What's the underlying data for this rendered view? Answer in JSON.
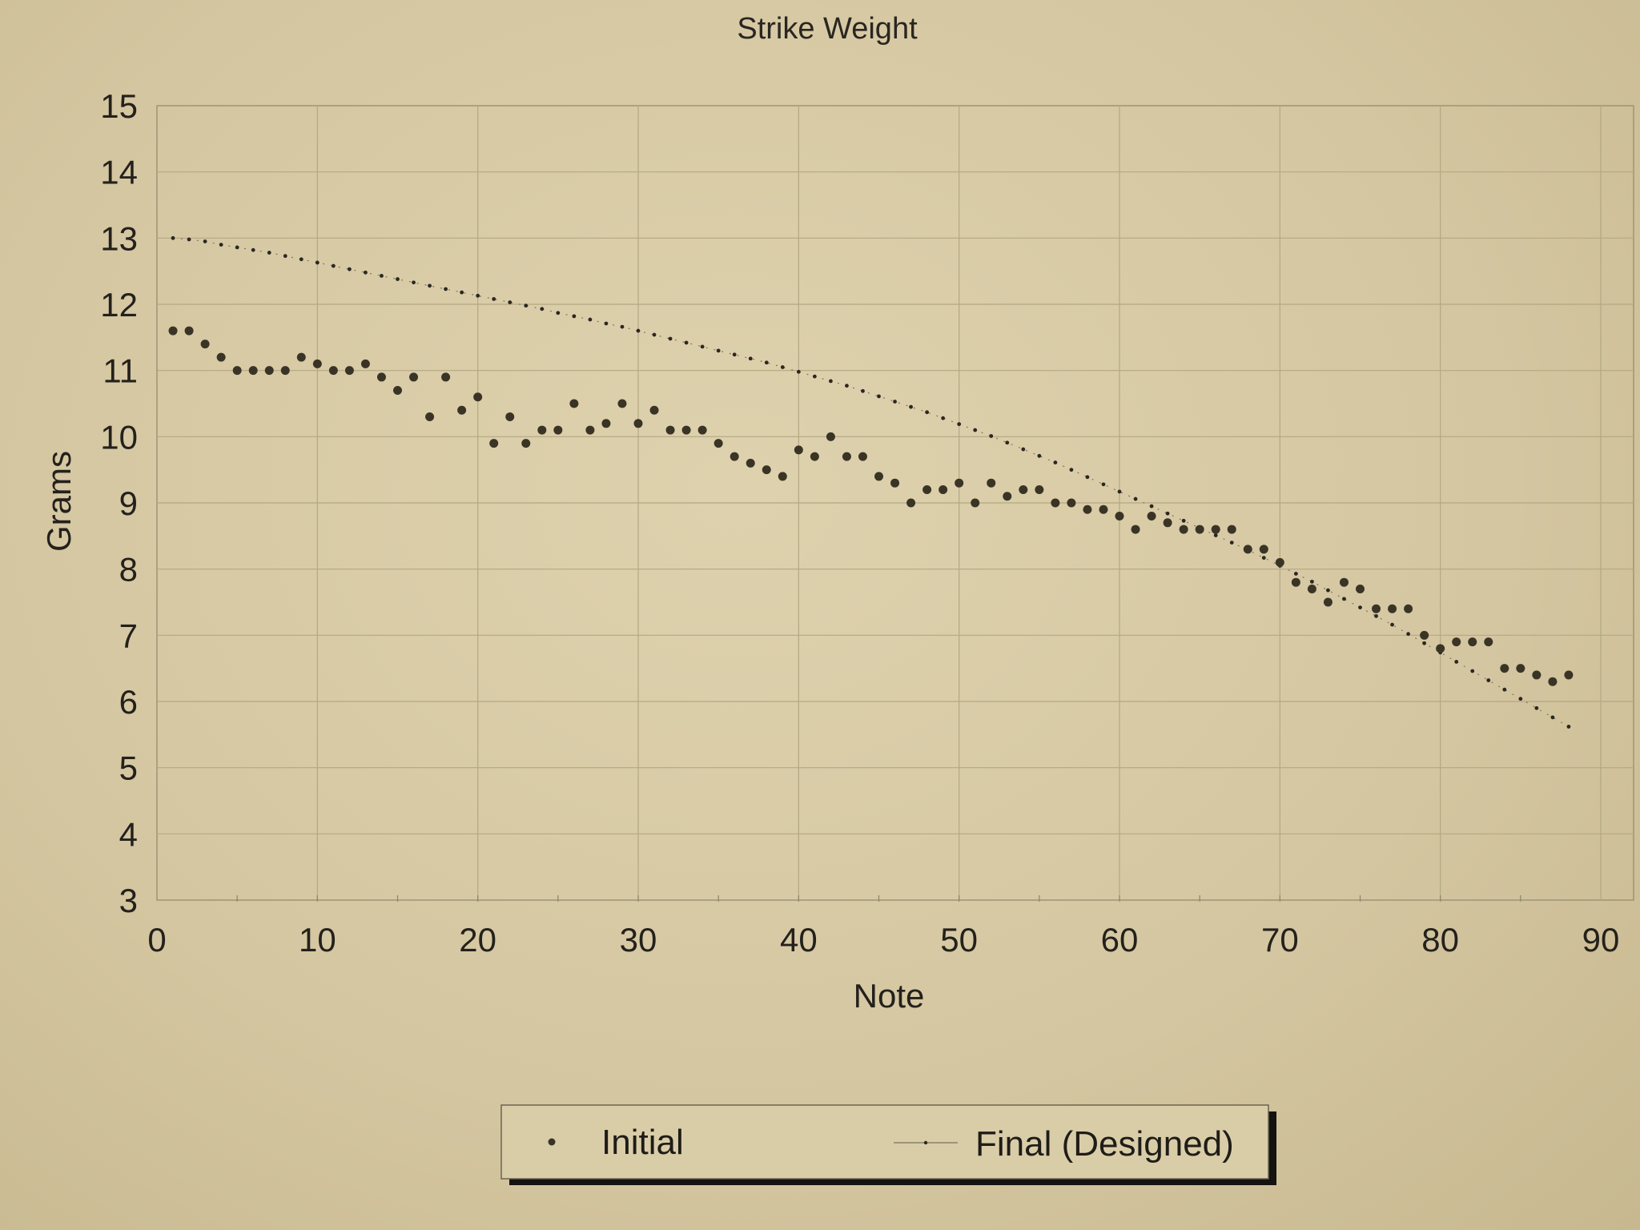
{
  "chart_data": {
    "type": "scatter",
    "title": "Strike Weight",
    "xlabel": "Note",
    "ylabel": "Grams",
    "xlim": [
      0,
      90
    ],
    "ylim": [
      3,
      15
    ],
    "x_ticks": [
      "0",
      "10",
      "20",
      "30",
      "40",
      "50",
      "60",
      "70",
      "80",
      "90"
    ],
    "y_ticks": [
      "3",
      "4",
      "5",
      "6",
      "7",
      "8",
      "9",
      "10",
      "11",
      "12",
      "13",
      "14",
      "15"
    ],
    "grid": true,
    "legend_position": "bottom",
    "colors": {
      "background": "#d6c9a4",
      "grid": "#b3a883",
      "marker": "#3a3426",
      "text": "#24211c"
    },
    "series": [
      {
        "name": "Initial",
        "style": "markers",
        "x": [
          1,
          2,
          3,
          4,
          5,
          6,
          7,
          8,
          9,
          10,
          11,
          12,
          13,
          14,
          15,
          16,
          17,
          18,
          19,
          20,
          21,
          22,
          23,
          24,
          25,
          26,
          27,
          28,
          29,
          30,
          31,
          32,
          33,
          34,
          35,
          36,
          37,
          38,
          39,
          40,
          41,
          42,
          43,
          44,
          45,
          46,
          47,
          48,
          49,
          50,
          51,
          52,
          53,
          54,
          55,
          56,
          57,
          58,
          59,
          60,
          61,
          62,
          63,
          64,
          65,
          66,
          67,
          68,
          69,
          70,
          71,
          72,
          73,
          74,
          75,
          76,
          77,
          78,
          79,
          80,
          81,
          82,
          83,
          84,
          85,
          86,
          87,
          88
        ],
        "y": [
          11.6,
          11.6,
          11.4,
          11.2,
          11.0,
          11.0,
          11.0,
          11.0,
          11.2,
          11.1,
          11.0,
          11.0,
          11.1,
          10.9,
          10.7,
          10.9,
          10.3,
          10.9,
          10.4,
          10.6,
          9.9,
          10.3,
          9.9,
          10.1,
          10.1,
          10.5,
          10.1,
          10.2,
          10.5,
          10.2,
          10.4,
          10.1,
          10.1,
          10.1,
          9.9,
          9.7,
          9.6,
          9.5,
          9.4,
          9.8,
          9.7,
          10.0,
          9.7,
          9.7,
          9.4,
          9.3,
          9.0,
          9.2,
          9.2,
          9.3,
          9.0,
          9.3,
          9.1,
          9.2,
          9.2,
          9.0,
          9.0,
          8.9,
          8.9,
          8.8,
          8.6,
          8.8,
          8.7,
          8.6,
          8.6,
          8.6,
          8.6,
          8.3,
          8.3,
          8.1,
          7.8,
          7.7,
          7.5,
          7.8,
          7.7,
          7.4,
          7.4,
          7.4,
          7.0,
          6.8,
          6.9,
          6.9,
          6.9,
          6.5,
          6.5,
          6.4,
          6.3,
          6.4
        ]
      },
      {
        "name": "Final (Designed)",
        "style": "dotted-line",
        "x": [
          1,
          2,
          3,
          4,
          5,
          6,
          7,
          8,
          9,
          10,
          11,
          12,
          13,
          14,
          15,
          16,
          17,
          18,
          19,
          20,
          21,
          22,
          23,
          24,
          25,
          26,
          27,
          28,
          29,
          30,
          31,
          32,
          33,
          34,
          35,
          36,
          37,
          38,
          39,
          40,
          41,
          42,
          43,
          44,
          45,
          46,
          47,
          48,
          49,
          50,
          51,
          52,
          53,
          54,
          55,
          56,
          57,
          58,
          59,
          60,
          61,
          62,
          63,
          64,
          65,
          66,
          67,
          68,
          69,
          70,
          71,
          72,
          73,
          74,
          75,
          76,
          77,
          78,
          79,
          80,
          81,
          82,
          83,
          84,
          85,
          86,
          87,
          88
        ],
        "y": [
          13.0,
          12.98,
          12.95,
          12.9,
          12.86,
          12.82,
          12.78,
          12.73,
          12.68,
          12.63,
          12.58,
          12.53,
          12.48,
          12.43,
          12.38,
          12.33,
          12.28,
          12.23,
          12.18,
          12.13,
          12.08,
          12.03,
          11.98,
          11.93,
          11.87,
          11.82,
          11.77,
          11.71,
          11.66,
          11.6,
          11.54,
          11.48,
          11.42,
          11.36,
          11.3,
          11.24,
          11.18,
          11.12,
          11.05,
          10.98,
          10.91,
          10.84,
          10.77,
          10.69,
          10.61,
          10.53,
          10.45,
          10.37,
          10.28,
          10.19,
          10.1,
          10.01,
          9.91,
          9.81,
          9.71,
          9.61,
          9.5,
          9.39,
          9.28,
          9.17,
          9.06,
          8.95,
          8.84,
          8.73,
          8.62,
          8.51,
          8.4,
          8.29,
          8.17,
          8.05,
          7.93,
          7.81,
          7.68,
          7.55,
          7.42,
          7.29,
          7.16,
          7.02,
          6.88,
          6.74,
          6.6,
          6.46,
          6.32,
          6.18,
          6.04,
          5.9,
          5.76,
          5.62
        ]
      }
    ]
  }
}
